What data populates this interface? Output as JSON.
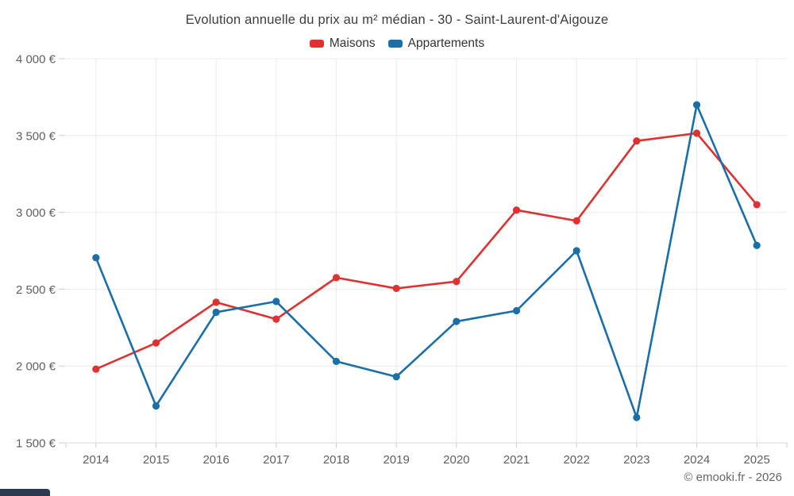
{
  "header": {
    "title": "Evolution annuelle du prix au m² médian - 30 - Saint-Laurent-d'Aigouze"
  },
  "footer": {
    "credit": "© emooki.fr - 2026"
  },
  "colors": {
    "maisons": "#e03131",
    "appartements": "#1a6fa8",
    "gridline": "#ebebeb",
    "axis_line": "#d9d9d9",
    "tick": "#cccccc",
    "axis_label": "#606060"
  },
  "chart_data": {
    "type": "line",
    "title": "Evolution annuelle du prix au m² médian - 30 - Saint-Laurent-d'Aigouze",
    "categories": [
      "2014",
      "2015",
      "2016",
      "2017",
      "2018",
      "2019",
      "2020",
      "2021",
      "2022",
      "2023",
      "2024",
      "2025"
    ],
    "series": [
      {
        "name": "Maisons",
        "color": "#e03131",
        "values": [
          1980,
          2150,
          2415,
          2305,
          2575,
          2505,
          2550,
          3015,
          2945,
          3465,
          3515,
          3050
        ]
      },
      {
        "name": "Appartements",
        "color": "#1a6fa8",
        "values": [
          2705,
          1740,
          2350,
          2420,
          2030,
          1930,
          2290,
          2360,
          2750,
          1665,
          3700,
          2785
        ]
      }
    ],
    "xlabel": "",
    "ylabel": "",
    "ylim": [
      1500,
      4000
    ],
    "y_step": 500,
    "y_tick_labels": [
      "1 500 €",
      "2 000 €",
      "2 500 €",
      "3 000 €",
      "3 500 €",
      "4 000 €"
    ],
    "grid": true,
    "legend_position": "top"
  }
}
